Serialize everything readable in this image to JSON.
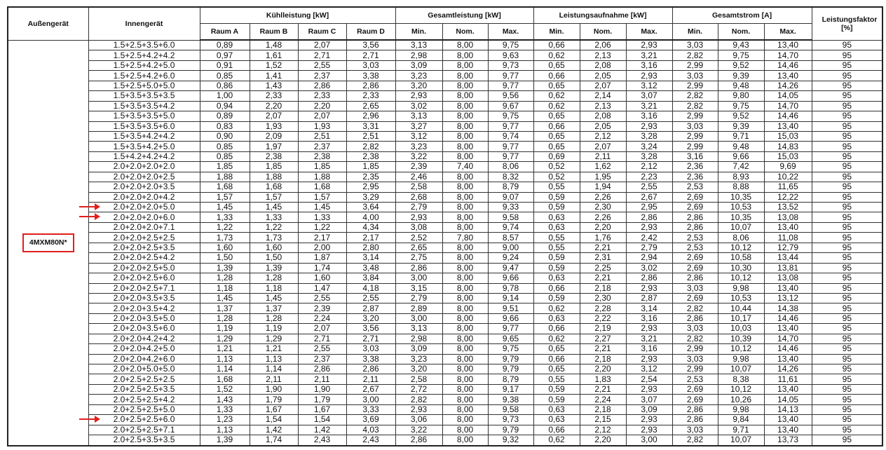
{
  "headers": {
    "outdoor": "Außengerät",
    "indoor": "Innengerät",
    "cooling": "Kühlleistung [kW]",
    "total_capacity": "Gesamtleistung [kW]",
    "power_input": "Leistungsaufnahme [kW]",
    "total_current": "Gesamtstrom [A]",
    "power_factor": "Leistungsfaktor [%]",
    "rooms": [
      "Raum A",
      "Raum B",
      "Raum C",
      "Raum D"
    ],
    "min": "Min.",
    "nom": "Nom.",
    "max": "Max."
  },
  "outdoor_model": "4MXM80N*",
  "highlight_color": "#e0201c",
  "marked_row_numbers": [
    17,
    18,
    38
  ],
  "rows": [
    [
      "1.5+2.5+3.5+6.0",
      "0,89",
      "1,48",
      "2,07",
      "3,56",
      "3,13",
      "8,00",
      "9,75",
      "0,66",
      "2,06",
      "2,93",
      "3,03",
      "9,43",
      "13,40",
      "95"
    ],
    [
      "1.5+2.5+4.2+4.2",
      "0,97",
      "1,61",
      "2,71",
      "2,71",
      "2,98",
      "8,00",
      "9,63",
      "0,62",
      "2,13",
      "3,21",
      "2,82",
      "9,75",
      "14,70",
      "95"
    ],
    [
      "1.5+2.5+4.2+5.0",
      "0,91",
      "1,52",
      "2,55",
      "3,03",
      "3,09",
      "8,00",
      "9,73",
      "0,65",
      "2,08",
      "3,16",
      "2,99",
      "9,52",
      "14,46",
      "95"
    ],
    [
      "1.5+2.5+4.2+6.0",
      "0,85",
      "1,41",
      "2,37",
      "3,38",
      "3,23",
      "8,00",
      "9,77",
      "0,66",
      "2,05",
      "2,93",
      "3,03",
      "9,39",
      "13,40",
      "95"
    ],
    [
      "1.5+2.5+5.0+5.0",
      "0,86",
      "1,43",
      "2,86",
      "2,86",
      "3,20",
      "8,00",
      "9,77",
      "0,65",
      "2,07",
      "3,12",
      "2,99",
      "9,48",
      "14,26",
      "95"
    ],
    [
      "1.5+3.5+3.5+3.5",
      "1,00",
      "2,33",
      "2,33",
      "2,33",
      "2,93",
      "8,00",
      "9,56",
      "0,62",
      "2,14",
      "3,07",
      "2,82",
      "9,80",
      "14,05",
      "95"
    ],
    [
      "1.5+3.5+3.5+4.2",
      "0,94",
      "2,20",
      "2,20",
      "2,65",
      "3,02",
      "8,00",
      "9,67",
      "0,62",
      "2,13",
      "3,21",
      "2,82",
      "9,75",
      "14,70",
      "95"
    ],
    [
      "1.5+3.5+3.5+5.0",
      "0,89",
      "2,07",
      "2,07",
      "2,96",
      "3,13",
      "8,00",
      "9,75",
      "0,65",
      "2,08",
      "3,16",
      "2,99",
      "9,52",
      "14,46",
      "95"
    ],
    [
      "1.5+3.5+3.5+6.0",
      "0,83",
      "1,93",
      "1,93",
      "3,31",
      "3,27",
      "8,00",
      "9,77",
      "0,66",
      "2,05",
      "2,93",
      "3,03",
      "9,39",
      "13,40",
      "95"
    ],
    [
      "1.5+3.5+4.2+4.2",
      "0,90",
      "2,09",
      "2,51",
      "2,51",
      "3,12",
      "8,00",
      "9,74",
      "0,65",
      "2,12",
      "3,28",
      "2,99",
      "9,71",
      "15,03",
      "95"
    ],
    [
      "1.5+3.5+4.2+5.0",
      "0,85",
      "1,97",
      "2,37",
      "2,82",
      "3,23",
      "8,00",
      "9,77",
      "0,65",
      "2,07",
      "3,24",
      "2,99",
      "9,48",
      "14,83",
      "95"
    ],
    [
      "1.5+4.2+4.2+4.2",
      "0,85",
      "2,38",
      "2,38",
      "2,38",
      "3,22",
      "8,00",
      "9,77",
      "0,69",
      "2,11",
      "3,28",
      "3,16",
      "9,66",
      "15,03",
      "95"
    ],
    [
      "2.0+2.0+2.0+2.0",
      "1,85",
      "1,85",
      "1,85",
      "1,85",
      "2,39",
      "7,40",
      "8,06",
      "0,52",
      "1,62",
      "2,12",
      "2,36",
      "7,42",
      "9,69",
      "95"
    ],
    [
      "2.0+2.0+2.0+2.5",
      "1,88",
      "1,88",
      "1,88",
      "2,35",
      "2,46",
      "8,00",
      "8,32",
      "0,52",
      "1,95",
      "2,23",
      "2,36",
      "8,93",
      "10,22",
      "95"
    ],
    [
      "2.0+2.0+2.0+3.5",
      "1,68",
      "1,68",
      "1,68",
      "2,95",
      "2,58",
      "8,00",
      "8,79",
      "0,55",
      "1,94",
      "2,55",
      "2,53",
      "8,88",
      "11,65",
      "95"
    ],
    [
      "2.0+2.0+2.0+4.2",
      "1,57",
      "1,57",
      "1,57",
      "3,29",
      "2,68",
      "8,00",
      "9,07",
      "0,59",
      "2,26",
      "2,67",
      "2,69",
      "10,35",
      "12,22",
      "95"
    ],
    [
      "2.0+2.0+2.0+5.0",
      "1,45",
      "1,45",
      "1,45",
      "3,64",
      "2,79",
      "8,00",
      "9,33",
      "0,59",
      "2,30",
      "2,95",
      "2,69",
      "10,53",
      "13,52",
      "95"
    ],
    [
      "2.0+2.0+2.0+6.0",
      "1,33",
      "1,33",
      "1,33",
      "4,00",
      "2,93",
      "8,00",
      "9,58",
      "0,63",
      "2,26",
      "2,86",
      "2,86",
      "10,35",
      "13,08",
      "95"
    ],
    [
      "2.0+2.0+2.0+7.1",
      "1,22",
      "1,22",
      "1,22",
      "4,34",
      "3,08",
      "8,00",
      "9,74",
      "0,63",
      "2,20",
      "2,93",
      "2,86",
      "10,07",
      "13,40",
      "95"
    ],
    [
      "2.0+2.0+2.5+2.5",
      "1,73",
      "1,73",
      "2,17",
      "2,17",
      "2,52",
      "7,80",
      "8,57",
      "0,55",
      "1,76",
      "2,42",
      "2,53",
      "8,06",
      "11,08",
      "95"
    ],
    [
      "2.0+2.0+2.5+3.5",
      "1,60",
      "1,60",
      "2,00",
      "2,80",
      "2,65",
      "8,00",
      "9,00",
      "0,55",
      "2,21",
      "2,79",
      "2,53",
      "10,12",
      "12,79",
      "95"
    ],
    [
      "2.0+2.0+2.5+4.2",
      "1,50",
      "1,50",
      "1,87",
      "3,14",
      "2,75",
      "8,00",
      "9,24",
      "0,59",
      "2,31",
      "2,94",
      "2,69",
      "10,58",
      "13,44",
      "95"
    ],
    [
      "2.0+2.0+2.5+5.0",
      "1,39",
      "1,39",
      "1,74",
      "3,48",
      "2,86",
      "8,00",
      "9,47",
      "0,59",
      "2,25",
      "3,02",
      "2,69",
      "10,30",
      "13,81",
      "95"
    ],
    [
      "2.0+2.0+2.5+6.0",
      "1,28",
      "1,28",
      "1,60",
      "3,84",
      "3,00",
      "8,00",
      "9,66",
      "0,63",
      "2,21",
      "2,86",
      "2,86",
      "10,12",
      "13,08",
      "95"
    ],
    [
      "2.0+2.0+2.5+7.1",
      "1,18",
      "1,18",
      "1,47",
      "4,18",
      "3,15",
      "8,00",
      "9,78",
      "0,66",
      "2,18",
      "2,93",
      "3,03",
      "9,98",
      "13,40",
      "95"
    ],
    [
      "2.0+2.0+3.5+3.5",
      "1,45",
      "1,45",
      "2,55",
      "2,55",
      "2,79",
      "8,00",
      "9,14",
      "0,59",
      "2,30",
      "2,87",
      "2,69",
      "10,53",
      "13,12",
      "95"
    ],
    [
      "2.0+2.0+3.5+4.2",
      "1,37",
      "1,37",
      "2,39",
      "2,87",
      "2,89",
      "8,00",
      "9,51",
      "0,62",
      "2,28",
      "3,14",
      "2,82",
      "10,44",
      "14,38",
      "95"
    ],
    [
      "2.0+2.0+3.5+5.0",
      "1,28",
      "1,28",
      "2,24",
      "3,20",
      "3,00",
      "8,00",
      "9,66",
      "0,63",
      "2,22",
      "3,16",
      "2,86",
      "10,17",
      "14,46",
      "95"
    ],
    [
      "2.0+2.0+3.5+6.0",
      "1,19",
      "1,19",
      "2,07",
      "3,56",
      "3,13",
      "8,00",
      "9,77",
      "0,66",
      "2,19",
      "2,93",
      "3,03",
      "10,03",
      "13,40",
      "95"
    ],
    [
      "2.0+2.0+4.2+4.2",
      "1,29",
      "1,29",
      "2,71",
      "2,71",
      "2,98",
      "8,00",
      "9,65",
      "0,62",
      "2,27",
      "3,21",
      "2,82",
      "10,39",
      "14,70",
      "95"
    ],
    [
      "2.0+2.0+4.2+5.0",
      "1,21",
      "1,21",
      "2,55",
      "3,03",
      "3,09",
      "8,00",
      "9,75",
      "0,65",
      "2,21",
      "3,16",
      "2,99",
      "10,12",
      "14,46",
      "95"
    ],
    [
      "2.0+2.0+4.2+6.0",
      "1,13",
      "1,13",
      "2,37",
      "3,38",
      "3,23",
      "8,00",
      "9,79",
      "0,66",
      "2,18",
      "2,93",
      "3,03",
      "9,98",
      "13,40",
      "95"
    ],
    [
      "2.0+2.0+5.0+5.0",
      "1,14",
      "1,14",
      "2,86",
      "2,86",
      "3,20",
      "8,00",
      "9,79",
      "0,65",
      "2,20",
      "3,12",
      "2,99",
      "10,07",
      "14,26",
      "95"
    ],
    [
      "2.0+2.5+2.5+2.5",
      "1,68",
      "2,11",
      "2,11",
      "2,11",
      "2,58",
      "8,00",
      "8,79",
      "0,55",
      "1,83",
      "2,54",
      "2,53",
      "8,38",
      "11,61",
      "95"
    ],
    [
      "2.0+2.5+2.5+3.5",
      "1,52",
      "1,90",
      "1,90",
      "2,67",
      "2,72",
      "8,00",
      "9,17",
      "0,59",
      "2,21",
      "2,93",
      "2,69",
      "10,12",
      "13,40",
      "95"
    ],
    [
      "2.0+2.5+2.5+4.2",
      "1,43",
      "1,79",
      "1,79",
      "3,00",
      "2,82",
      "8,00",
      "9,38",
      "0,59",
      "2,24",
      "3,07",
      "2,69",
      "10,26",
      "14,05",
      "95"
    ],
    [
      "2.0+2.5+2.5+5.0",
      "1,33",
      "1,67",
      "1,67",
      "3,33",
      "2,93",
      "8,00",
      "9,58",
      "0,63",
      "2,18",
      "3,09",
      "2,86",
      "9,98",
      "14,13",
      "95"
    ],
    [
      "2.0+2.5+2.5+6.0",
      "1,23",
      "1,54",
      "1,54",
      "3,69",
      "3,06",
      "8,00",
      "9,73",
      "0,63",
      "2,15",
      "2,93",
      "2,86",
      "9,84",
      "13,40",
      "95"
    ],
    [
      "2.0+2.5+2.5+7.1",
      "1,13",
      "1,42",
      "1,42",
      "4,03",
      "3,22",
      "8,00",
      "9,79",
      "0,66",
      "2,12",
      "2,93",
      "3,03",
      "9,71",
      "13,40",
      "95"
    ],
    [
      "2.0+2.5+3.5+3.5",
      "1,39",
      "1,74",
      "2,43",
      "2,43",
      "2,86",
      "8,00",
      "9,32",
      "0,62",
      "2,20",
      "3,00",
      "2,82",
      "10,07",
      "13,73",
      "95"
    ]
  ]
}
